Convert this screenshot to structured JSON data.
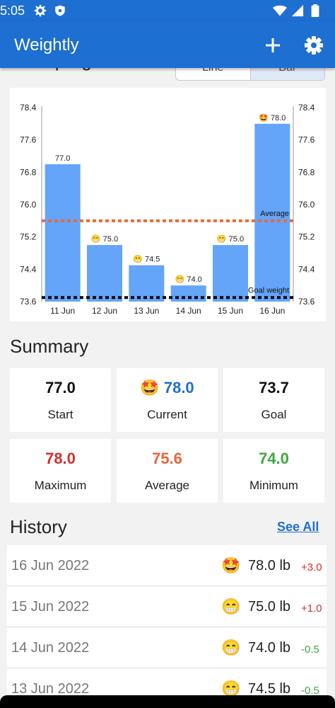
{
  "status_bar": {
    "time": "5:05"
  },
  "app_bar": {
    "title": "Weightly"
  },
  "progress": {
    "title": "Your progress",
    "toggle": [
      "Line",
      "Bar"
    ],
    "selected": "Bar"
  },
  "chart_data": {
    "type": "bar",
    "categories": [
      "11 Jun",
      "12 Jun",
      "13 Jun",
      "14 Jun",
      "15 Jun",
      "16 Jun"
    ],
    "values": [
      77.0,
      75.0,
      74.5,
      74.0,
      75.0,
      78.0
    ],
    "value_labels": [
      "77.0",
      "75.0",
      "74.5",
      "74.0",
      "75.0",
      "78.0"
    ],
    "emojis": [
      "",
      "😁",
      "😁",
      "😁",
      "😁",
      "🤩"
    ],
    "y_ticks": [
      "78.4",
      "77.6",
      "76.8",
      "76.0",
      "75.2",
      "74.4",
      "73.6"
    ],
    "ylim": [
      73.6,
      78.4
    ],
    "average": 75.6,
    "average_label": "Average",
    "goal": 73.7,
    "goal_label": "Goal weight",
    "bar_color": "#64a5fa",
    "average_color": "#ea6a3a",
    "goal_color": "#000000"
  },
  "summary": {
    "title": "Summary",
    "cards": [
      {
        "value": "77.0",
        "label": "Start",
        "emoji": "",
        "color": "#111111"
      },
      {
        "value": "78.0",
        "label": "Current",
        "emoji": "🤩",
        "color": "#1d6fd1"
      },
      {
        "value": "73.7",
        "label": "Goal",
        "emoji": "",
        "color": "#111111"
      },
      {
        "value": "78.0",
        "label": "Maximum",
        "emoji": "",
        "color": "#d32f2f"
      },
      {
        "value": "75.6",
        "label": "Average",
        "emoji": "",
        "color": "#e8643a"
      },
      {
        "value": "74.0",
        "label": "Minimum",
        "emoji": "",
        "color": "#3fa83f"
      }
    ]
  },
  "history": {
    "title": "History",
    "see_all": "See All",
    "rows": [
      {
        "date": "16 Jun 2022",
        "emoji": "🤩",
        "weight": "78.0 lb",
        "delta": "+3.0",
        "delta_color": "#d32f2f"
      },
      {
        "date": "15 Jun 2022",
        "emoji": "😁",
        "weight": "75.0 lb",
        "delta": "+1.0",
        "delta_color": "#d32f2f"
      },
      {
        "date": "14 Jun 2022",
        "emoji": "😁",
        "weight": "74.0 lb",
        "delta": "-0.5",
        "delta_color": "#3fa83f"
      },
      {
        "date": "13 Jun 2022",
        "emoji": "😁",
        "weight": "74.5 lb",
        "delta": "-0.5",
        "delta_color": "#3fa83f"
      }
    ]
  }
}
